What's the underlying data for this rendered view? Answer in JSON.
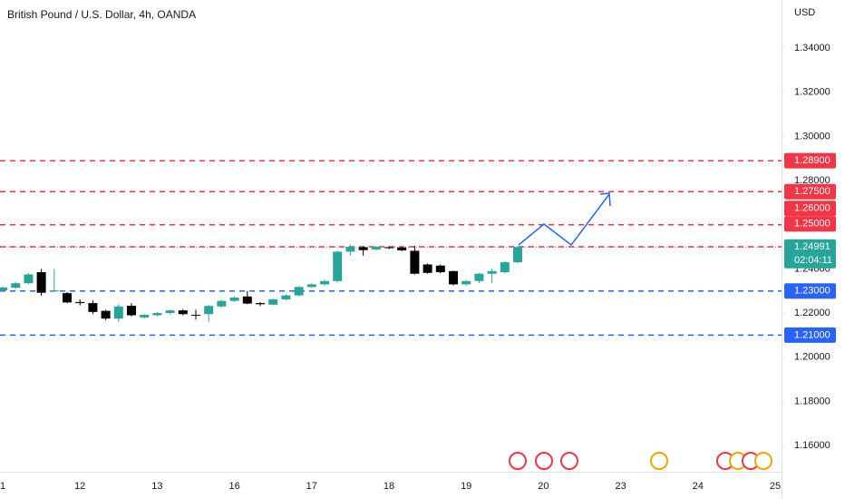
{
  "chart_data": {
    "type": "candlestick",
    "title": "British Pound / U.S. Dollar, 4h, OANDA",
    "currency": "USD",
    "categories": [
      "1",
      null,
      null,
      null,
      null,
      null,
      "12",
      null,
      null,
      null,
      null,
      null,
      "13",
      null,
      null,
      null,
      null,
      null,
      "16",
      null,
      null,
      null,
      null,
      null,
      "17",
      null,
      null,
      null,
      null,
      null,
      "18",
      null,
      null,
      null,
      null,
      null,
      "19",
      null,
      null,
      null,
      null,
      null,
      "20",
      null,
      null,
      null,
      null,
      null,
      "23",
      null,
      null,
      null,
      null,
      null,
      "24",
      null,
      null,
      null,
      null,
      null,
      "25"
    ],
    "open": [
      1.2302,
      1.2315,
      1.2335,
      1.2385,
      1.23,
      1.229,
      1.225,
      1.2245,
      1.221,
      1.2175,
      1.2233,
      1.218,
      1.219,
      1.22,
      1.2212,
      1.2192,
      1.2195,
      1.223,
      1.2255,
      1.2275,
      1.2245,
      1.2238,
      1.2262,
      1.228,
      1.2318,
      1.233,
      1.2345,
      1.2478,
      1.2498,
      1.2488,
      1.2498,
      1.2497,
      1.2482,
      1.242,
      1.2415,
      1.239,
      1.233,
      1.2345,
      1.2378,
      1.2385,
      1.243,
      null,
      null,
      null,
      null,
      null,
      null,
      null,
      null,
      null,
      null,
      null,
      null,
      null,
      null,
      null,
      null,
      null,
      null,
      null,
      null
    ],
    "high": [
      1.232,
      1.234,
      1.238,
      1.24,
      1.24,
      1.2295,
      1.2262,
      1.2258,
      1.2215,
      1.224,
      1.2245,
      1.2195,
      1.2205,
      1.2216,
      1.2218,
      1.2215,
      1.2238,
      1.226,
      1.2275,
      1.23,
      1.225,
      1.2265,
      1.2285,
      1.2322,
      1.2335,
      1.235,
      1.2482,
      1.251,
      1.2502,
      1.2505,
      1.2502,
      1.25,
      1.2505,
      1.2425,
      1.242,
      1.2392,
      1.235,
      1.2382,
      1.24,
      1.2435,
      1.2505,
      null,
      null,
      null,
      null,
      null,
      null,
      null,
      null,
      null,
      null,
      null,
      null,
      null,
      null,
      null,
      null,
      null,
      null,
      null,
      null
    ],
    "low": [
      1.2298,
      1.231,
      1.233,
      1.2278,
      1.2296,
      1.2245,
      1.2235,
      1.2195,
      1.2168,
      1.216,
      1.2185,
      1.2175,
      1.2185,
      1.2195,
      1.219,
      1.217,
      1.216,
      1.2225,
      1.225,
      1.224,
      1.2232,
      1.2235,
      1.2258,
      1.2275,
      1.2315,
      1.2325,
      1.234,
      1.246,
      1.246,
      1.2483,
      1.249,
      1.248,
      1.2375,
      1.2378,
      1.238,
      1.2325,
      1.2325,
      1.2335,
      1.2335,
      1.238,
      1.2425,
      null,
      null,
      null,
      null,
      null,
      null,
      null,
      null,
      null,
      null,
      null,
      null,
      null,
      null,
      null,
      null,
      null,
      null,
      null,
      null
    ],
    "close": [
      1.2316,
      1.2335,
      1.2375,
      1.2292,
      1.2303,
      1.2248,
      1.2245,
      1.2205,
      1.2175,
      1.223,
      1.219,
      1.2192,
      1.22,
      1.2212,
      1.2195,
      1.2188,
      1.2232,
      1.2255,
      1.227,
      1.2243,
      1.224,
      1.2262,
      1.228,
      1.2318,
      1.233,
      1.2345,
      1.2478,
      1.25,
      1.2485,
      1.25,
      1.2495,
      1.2484,
      1.2378,
      1.2382,
      1.2385,
      1.233,
      1.2345,
      1.2378,
      1.239,
      1.243,
      1.2499,
      null,
      null,
      null,
      null,
      null,
      null,
      null,
      null,
      null,
      null,
      null,
      null,
      null,
      null,
      null,
      null,
      null,
      null,
      null,
      null
    ],
    "up_color": "#26a69a",
    "down_color": "#000000",
    "ylim": [
      1.1481,
      1.3618
    ],
    "yticks": [
      {
        "value": 1.16,
        "label": "1.16000"
      },
      {
        "value": 1.18,
        "label": "1.18000"
      },
      {
        "value": 1.2,
        "label": "1.20000"
      },
      {
        "value": 1.22,
        "label": "1.22000"
      },
      {
        "value": 1.24,
        "label": "1.24000"
      },
      {
        "value": 1.28,
        "label": "1.28000"
      },
      {
        "value": 1.3,
        "label": "1.30000"
      },
      {
        "value": 1.32,
        "label": "1.32000"
      },
      {
        "value": 1.34,
        "label": "1.34000"
      }
    ],
    "levels": [
      {
        "value": 1.289,
        "label": "1.28900",
        "color": "#f23645"
      },
      {
        "value": 1.275,
        "label": "1.27500",
        "color": "#f23645"
      },
      {
        "value": 1.26,
        "label": "1.26000",
        "color": "#f23645"
      },
      {
        "value": 1.25,
        "label": "1.25000",
        "color": "#f23645"
      },
      {
        "value": 1.23,
        "label": "1.23000",
        "color": "#2962ff"
      },
      {
        "value": 1.21,
        "label": "1.21000",
        "color": "#2962ff"
      }
    ],
    "last_price": 1.24991,
    "countdown": "02:04:11"
  }
}
